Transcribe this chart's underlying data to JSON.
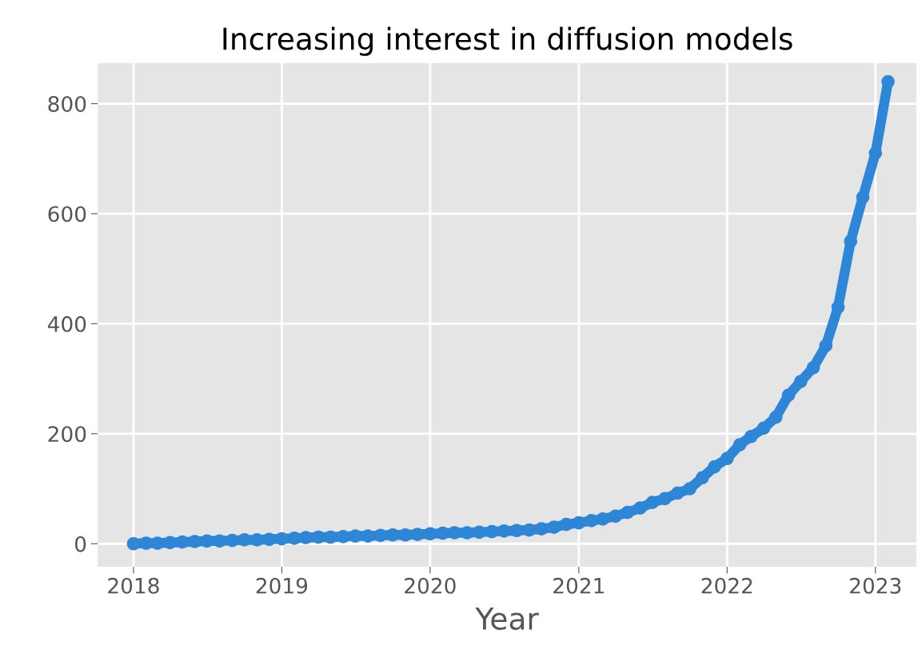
{
  "chart_data": {
    "type": "line",
    "title": "Increasing interest in diffusion models",
    "xlabel": "Year",
    "x": [
      "2018-01",
      "2018-02",
      "2018-03",
      "2018-04",
      "2018-05",
      "2018-06",
      "2018-07",
      "2018-08",
      "2018-09",
      "2018-10",
      "2018-11",
      "2018-12",
      "2019-01",
      "2019-02",
      "2019-03",
      "2019-04",
      "2019-05",
      "2019-06",
      "2019-07",
      "2019-08",
      "2019-09",
      "2019-10",
      "2019-11",
      "2019-12",
      "2020-01",
      "2020-02",
      "2020-03",
      "2020-04",
      "2020-05",
      "2020-06",
      "2020-07",
      "2020-08",
      "2020-09",
      "2020-10",
      "2020-11",
      "2020-12",
      "2021-01",
      "2021-02",
      "2021-03",
      "2021-04",
      "2021-05",
      "2021-06",
      "2021-07",
      "2021-08",
      "2021-09",
      "2021-10",
      "2021-11",
      "2021-12",
      "2022-01",
      "2022-02",
      "2022-03",
      "2022-04",
      "2022-05",
      "2022-06",
      "2022-07",
      "2022-08",
      "2022-09",
      "2022-10",
      "2022-11",
      "2022-12",
      "2023-01",
      "2023-02"
    ],
    "series": [
      {
        "color": "#2e86d6",
        "values": [
          0,
          1,
          1,
          2,
          3,
          4,
          5,
          5,
          6,
          7,
          7,
          8,
          9,
          10,
          11,
          12,
          12,
          13,
          14,
          14,
          15,
          16,
          16,
          17,
          18,
          19,
          20,
          20,
          21,
          22,
          23,
          24,
          25,
          27,
          30,
          35,
          38,
          42,
          45,
          50,
          57,
          65,
          75,
          82,
          92,
          100,
          120,
          140,
          155,
          180,
          195,
          210,
          230,
          270,
          295,
          320,
          360,
          430,
          550,
          630,
          710,
          840
        ]
      }
    ],
    "xlim": [
      "2017-10-05",
      "2023-04-12"
    ],
    "xticks": [
      {
        "value": "2018",
        "label": "2018"
      },
      {
        "value": "2019",
        "label": "2019"
      },
      {
        "value": "2020",
        "label": "2020"
      },
      {
        "value": "2021",
        "label": "2021"
      },
      {
        "value": "2022",
        "label": "2022"
      },
      {
        "value": "2023",
        "label": "2023"
      }
    ],
    "ylim": [
      -42,
      874
    ],
    "yticks": [
      0,
      200,
      400,
      600,
      800
    ],
    "grid": true,
    "marker": "circle",
    "line_style": "solid",
    "legend": false
  }
}
